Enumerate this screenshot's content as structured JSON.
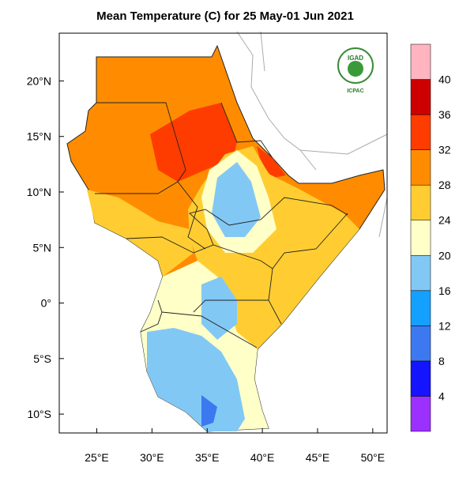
{
  "title": "Mean Temperature (C) for 25 May-01 Jun 2021",
  "logo": {
    "name": "IGAD",
    "org": "ICPAC"
  },
  "map": {
    "lon_range": [
      21.6,
      51.3
    ],
    "lat_range": [
      -11.7,
      24.3
    ],
    "lon_ticks": [
      {
        "value": 25,
        "label": "25°E"
      },
      {
        "value": 30,
        "label": "30°E"
      },
      {
        "value": 35,
        "label": "35°E"
      },
      {
        "value": 40,
        "label": "40°E"
      },
      {
        "value": 45,
        "label": "45°E"
      },
      {
        "value": 50,
        "label": "50°E"
      }
    ],
    "lat_ticks": [
      {
        "value": 20,
        "label": "20°N"
      },
      {
        "value": 15,
        "label": "15°N"
      },
      {
        "value": 10,
        "label": "10°N"
      },
      {
        "value": 5,
        "label": "5°N"
      },
      {
        "value": 0,
        "label": "0°"
      },
      {
        "value": -5,
        "label": "5°S"
      },
      {
        "value": -10,
        "label": "10°S"
      }
    ]
  },
  "colorbar": {
    "colors": [
      "#9b30ff",
      "#1414ff",
      "#3c78f0",
      "#14a0ff",
      "#82c8f5",
      "#ffffc8",
      "#ffcd32",
      "#ff8c00",
      "#ff3c00",
      "#cd0000",
      "#ffb4c0"
    ],
    "levels": [
      4,
      8,
      12,
      16,
      20,
      24,
      28,
      32,
      36,
      40
    ]
  }
}
